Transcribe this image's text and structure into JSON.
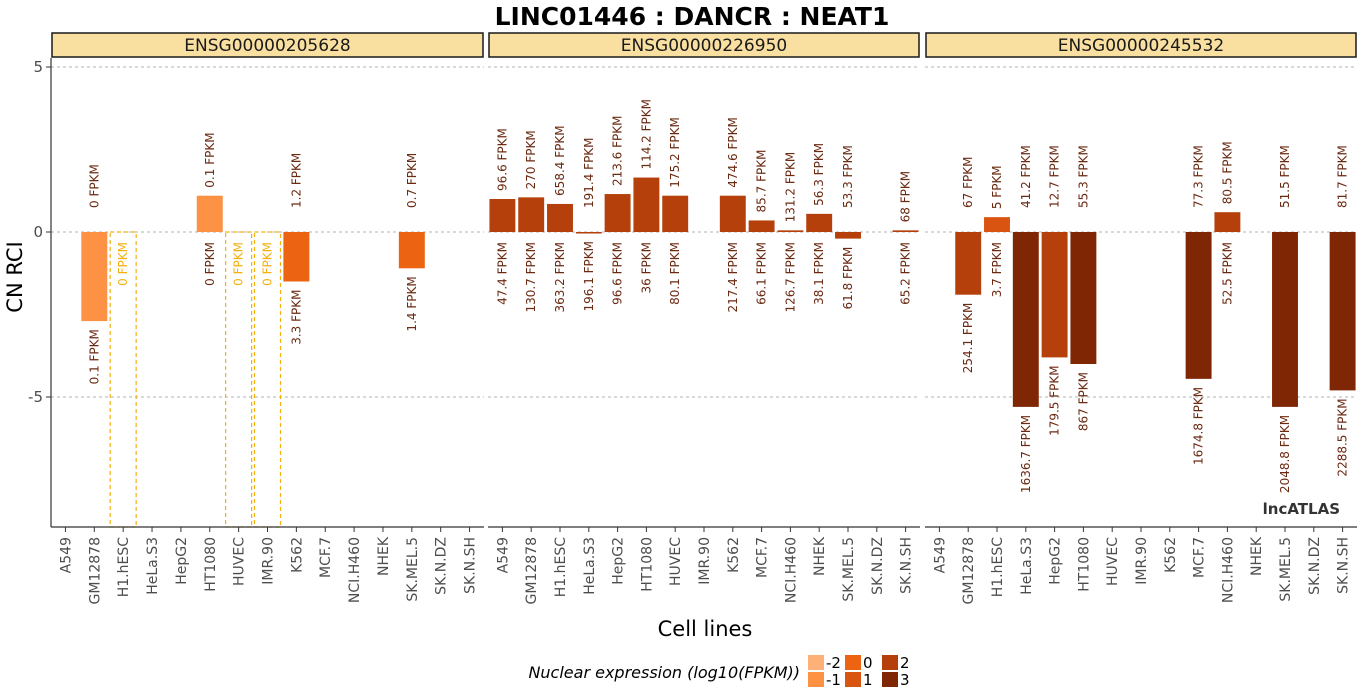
{
  "chart_data": {
    "type": "bar",
    "title": "LINC01446 : DANCR : NEAT1",
    "xlabel": "Cell lines",
    "ylabel": "CN RCI",
    "ylim": [
      -8.9,
      5.1
    ],
    "yticks": [
      5,
      0,
      -5
    ],
    "yticklabels": [
      "5",
      "0",
      "-5"
    ],
    "grid": true,
    "brand": "lncATLAS",
    "categories": [
      "A549",
      "GM12878",
      "H1.hESC",
      "HeLa.S3",
      "HepG2",
      "HT1080",
      "HUVEC",
      "IMR.90",
      "K562",
      "MCF.7",
      "NCI.H460",
      "NHEK",
      "SK.MEL.5",
      "SK.N.DZ",
      "SK.N.SH"
    ],
    "panels": [
      {
        "name": "ENSG00000205628",
        "values": [
          null,
          -2.7,
          null,
          null,
          null,
          1.1,
          null,
          null,
          -1.5,
          null,
          null,
          null,
          -1.1,
          null,
          null
        ],
        "nuclear_log10": [
          null,
          -1,
          -2,
          null,
          null,
          -1,
          -2,
          -2,
          0,
          null,
          null,
          null,
          0,
          null,
          null
        ],
        "dashed": [
          false,
          false,
          true,
          false,
          false,
          false,
          true,
          true,
          false,
          false,
          false,
          false,
          false,
          false,
          false
        ],
        "top_labels": [
          "",
          "0 FPKM",
          "",
          "",
          "",
          "0.1 FPKM",
          "",
          "",
          "1.2 FPKM",
          "",
          "",
          "",
          "0.7 FPKM",
          "",
          ""
        ],
        "bottom_labels": [
          "",
          "0.1 FPKM",
          "0 FPKM",
          "",
          "",
          "0 FPKM",
          "0 FPKM",
          "0 FPKM",
          "3.3 FPKM",
          "",
          "",
          "",
          "1.4 FPKM",
          "",
          ""
        ]
      },
      {
        "name": "ENSG00000226950",
        "values": [
          1.0,
          1.05,
          0.85,
          -0.03,
          1.15,
          1.65,
          1.1,
          null,
          1.1,
          0.35,
          0.05,
          0.55,
          -0.2,
          null,
          0.05
        ],
        "nuclear_log10": [
          2,
          2,
          2,
          2,
          2,
          2,
          2,
          null,
          2,
          2,
          2,
          2,
          2,
          null,
          2
        ],
        "dashed": [
          false,
          false,
          false,
          false,
          false,
          false,
          false,
          false,
          false,
          false,
          false,
          false,
          false,
          false,
          false
        ],
        "top_labels": [
          "96.6 FPKM",
          "270 FPKM",
          "658.4 FPKM",
          "191.4 FPKM",
          "213.6 FPKM",
          "114.2 FPKM",
          "175.2 FPKM",
          "",
          "474.6 FPKM",
          "85.7 FPKM",
          "131.2 FPKM",
          "56.3 FPKM",
          "53.3 FPKM",
          "",
          "68 FPKM"
        ],
        "bottom_labels": [
          "47.4 FPKM",
          "130.7 FPKM",
          "363.2 FPKM",
          "196.1 FPKM",
          "96.6 FPKM",
          "36 FPKM",
          "80.1 FPKM",
          "",
          "217.4 FPKM",
          "66.1 FPKM",
          "126.7 FPKM",
          "38.1 FPKM",
          "61.8 FPKM",
          "",
          "65.2 FPKM"
        ]
      },
      {
        "name": "ENSG00000245532",
        "values": [
          null,
          -1.9,
          0.45,
          -5.3,
          -3.8,
          -4.0,
          null,
          null,
          null,
          -4.45,
          0.6,
          null,
          -5.3,
          null,
          -4.8
        ],
        "nuclear_log10": [
          null,
          2.4,
          0.6,
          3.2,
          2.25,
          2.9,
          null,
          null,
          null,
          3.2,
          1.7,
          null,
          3.3,
          null,
          3.35
        ],
        "dashed": [
          false,
          false,
          false,
          false,
          false,
          false,
          false,
          false,
          false,
          false,
          false,
          false,
          false,
          false,
          false
        ],
        "top_labels": [
          "",
          "67 FPKM",
          "5 FPKM",
          "41.2 FPKM",
          "12.7 FPKM",
          "55.3 FPKM",
          "",
          "",
          "",
          "77.3 FPKM",
          "80.5 FPKM",
          "",
          "51.5 FPKM",
          "",
          "81.7 FPKM"
        ],
        "bottom_labels": [
          "",
          "254.1 FPKM",
          "3.7 FPKM",
          "1636.7 FPKM",
          "179.5 FPKM",
          "867 FPKM",
          "",
          "",
          "",
          "1674.8 FPKM",
          "52.5 FPKM",
          "",
          "2048.8 FPKM",
          "",
          "2288.5 FPKM"
        ]
      }
    ],
    "legend": {
      "title": "Nuclear expression (log10(FPKM))",
      "placement": "bottom",
      "keys": [
        {
          "label": "-2",
          "color": "#fdb077"
        },
        {
          "label": "-1",
          "color": "#fd9244"
        },
        {
          "label": "0",
          "color": "#ec6412"
        },
        {
          "label": "1",
          "color": "#d95410"
        },
        {
          "label": "2",
          "color": "#b5400b"
        },
        {
          "label": "3",
          "color": "#7f2704"
        }
      ]
    },
    "colors": {
      "strip_fill": "#f9dfa0",
      "dashed_stroke": "#f4b00e",
      "label_dark": "#6b2a12",
      "label_dashed": "#f4b00e",
      "grid": "#9a9a9a"
    }
  }
}
